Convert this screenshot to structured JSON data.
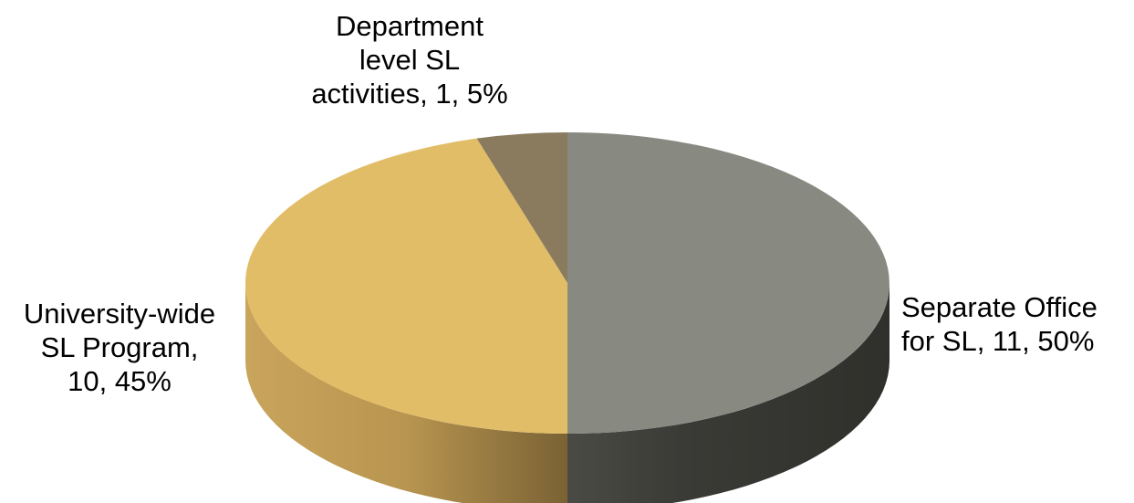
{
  "chart_data": {
    "type": "pie",
    "title": "",
    "slices": [
      {
        "label_lines": [
          "Separate Office",
          "for SL, 11, 50%"
        ],
        "value": 11,
        "percent": 50,
        "color": "#888980",
        "side_color": "#3b3c36"
      },
      {
        "label_lines": [
          "University-wide",
          "SL Program,",
          "10, 45%"
        ],
        "value": 10,
        "percent": 45,
        "color": "#e2bd68",
        "side_color": "#a88a45"
      },
      {
        "label_lines": [
          "Department",
          "level SL",
          "activities, 1, 5%"
        ],
        "value": 1,
        "percent": 5,
        "color": "#8b7b5e",
        "side_color": "#5e523d"
      }
    ],
    "legend": "none",
    "style": "3d"
  }
}
